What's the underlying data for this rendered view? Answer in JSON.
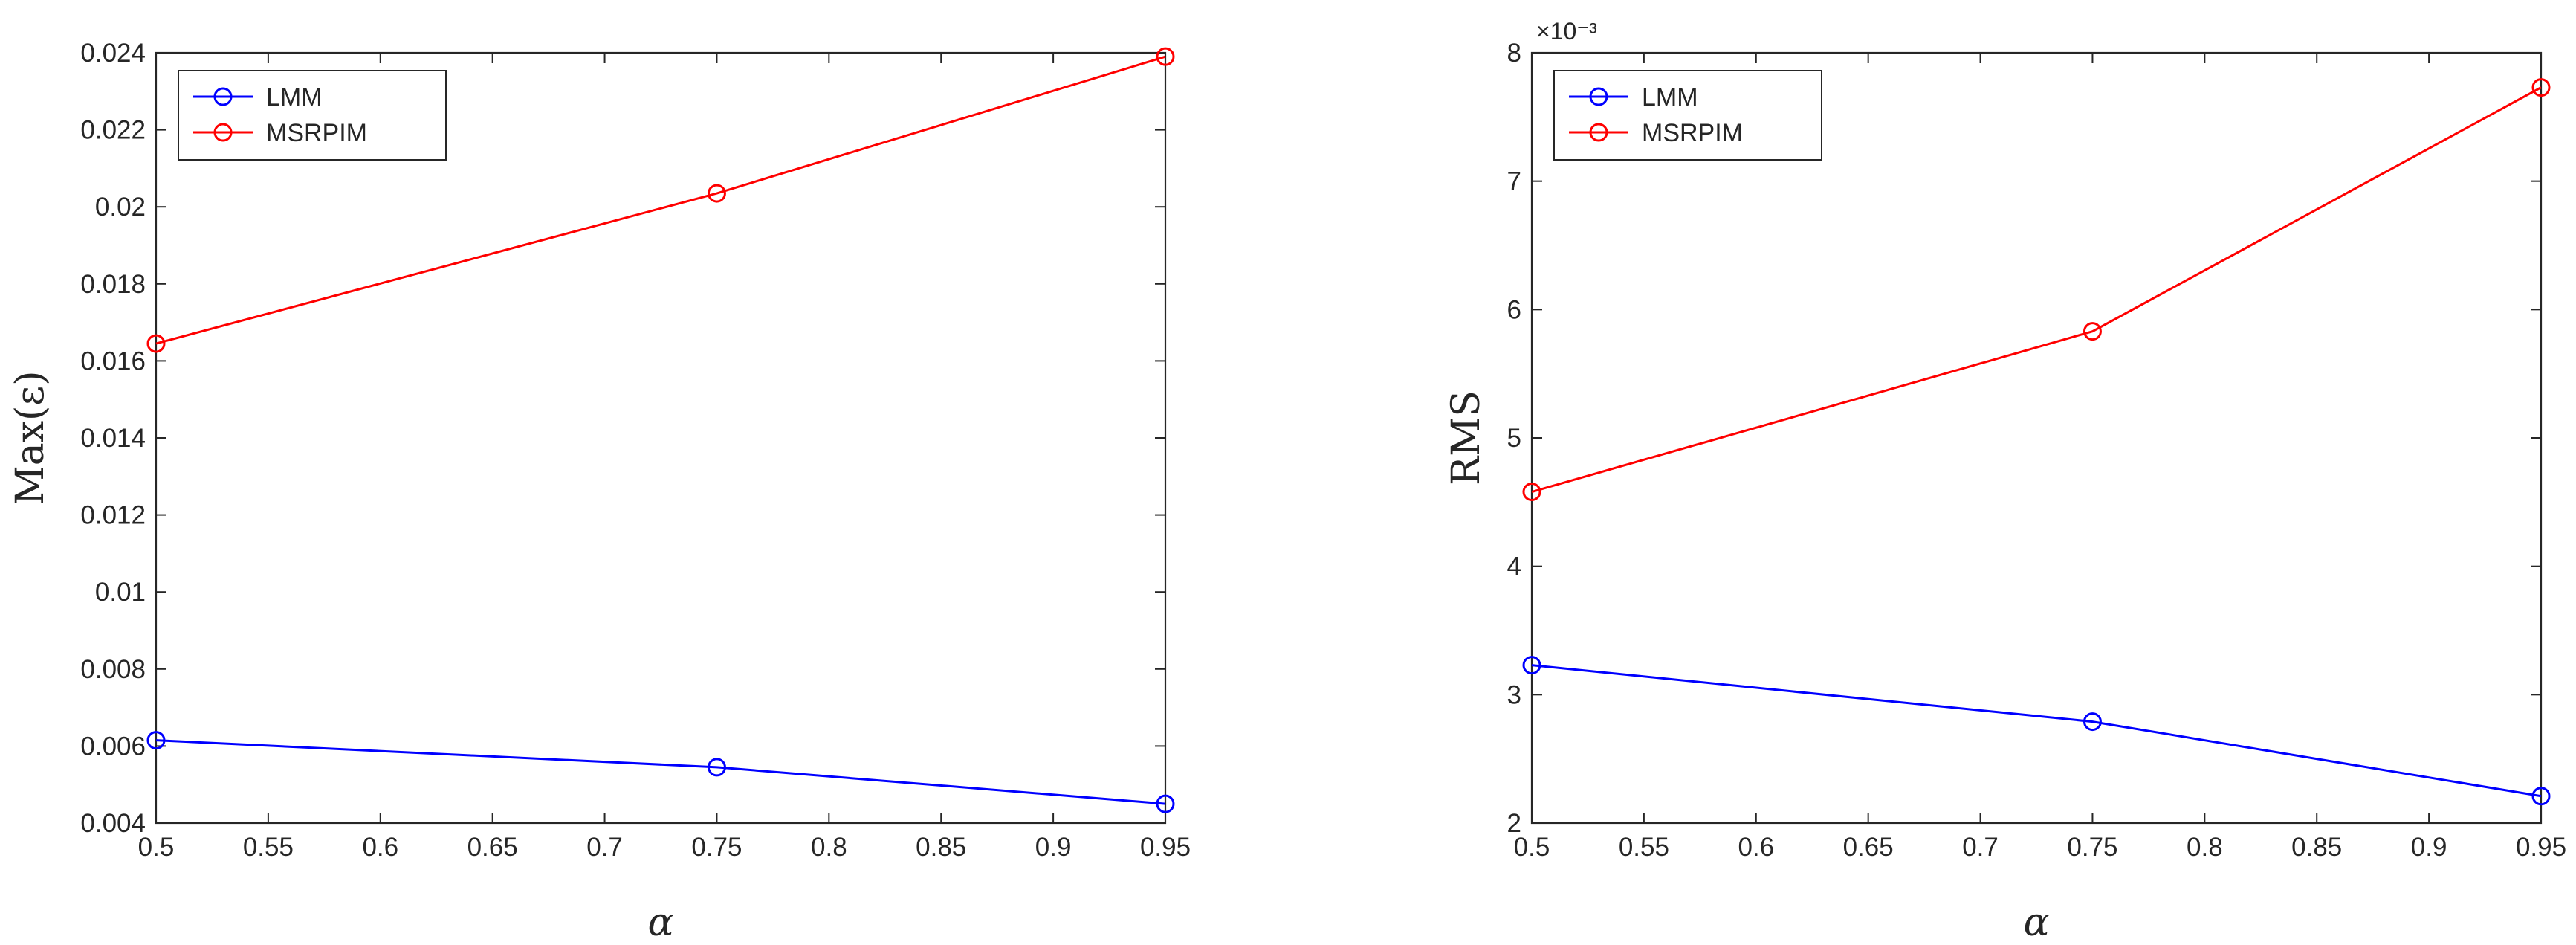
{
  "chart_data": [
    {
      "type": "line",
      "xlabel": "α",
      "ylabel": "Max(ε)",
      "xlim": [
        0.5,
        0.95
      ],
      "ylim": [
        0.004,
        0.024
      ],
      "xticks": [
        0.5,
        0.55,
        0.6,
        0.65,
        0.7,
        0.75,
        0.8,
        0.85,
        0.9,
        0.95
      ],
      "xtick_labels": [
        "0.5",
        "0.55",
        "0.6",
        "0.65",
        "0.7",
        "0.75",
        "0.8",
        "0.85",
        "0.9",
        "0.95"
      ],
      "yticks": [
        0.004,
        0.006,
        0.008,
        0.01,
        0.012,
        0.014,
        0.016,
        0.018,
        0.02,
        0.022,
        0.024
      ],
      "ytick_labels": [
        "0.004",
        "0.006",
        "0.008",
        "0.01",
        "0.012",
        "0.014",
        "0.016",
        "0.018",
        "0.02",
        "0.022",
        "0.024"
      ],
      "legend_position": "top-left",
      "grid": false,
      "series": [
        {
          "name": "LMM",
          "color": "#0000ff",
          "x": [
            0.5,
            0.75,
            0.95
          ],
          "values": [
            0.00615,
            0.00545,
            0.0045
          ]
        },
        {
          "name": "MSRPIM",
          "color": "#ff0000",
          "x": [
            0.5,
            0.75,
            0.95
          ],
          "values": [
            0.01645,
            0.02035,
            0.0239
          ]
        }
      ]
    },
    {
      "type": "line",
      "xlabel": "α",
      "ylabel": "RMS",
      "y_exponent_label": "×10⁻³",
      "xlim": [
        0.5,
        0.95
      ],
      "ylim": [
        2,
        8
      ],
      "xticks": [
        0.5,
        0.55,
        0.6,
        0.65,
        0.7,
        0.75,
        0.8,
        0.85,
        0.9,
        0.95
      ],
      "xtick_labels": [
        "0.5",
        "0.55",
        "0.6",
        "0.65",
        "0.7",
        "0.75",
        "0.8",
        "0.85",
        "0.9",
        "0.95"
      ],
      "yticks": [
        2,
        3,
        4,
        5,
        6,
        7,
        8
      ],
      "ytick_labels": [
        "2",
        "3",
        "4",
        "5",
        "6",
        "7",
        "8"
      ],
      "legend_position": "top-left",
      "grid": false,
      "series": [
        {
          "name": "LMM",
          "color": "#0000ff",
          "x": [
            0.5,
            0.75,
            0.95
          ],
          "values": [
            3.23,
            2.79,
            2.21
          ]
        },
        {
          "name": "MSRPIM",
          "color": "#ff0000",
          "x": [
            0.5,
            0.75,
            0.95
          ],
          "values": [
            4.58,
            5.83,
            7.73
          ]
        }
      ]
    }
  ]
}
